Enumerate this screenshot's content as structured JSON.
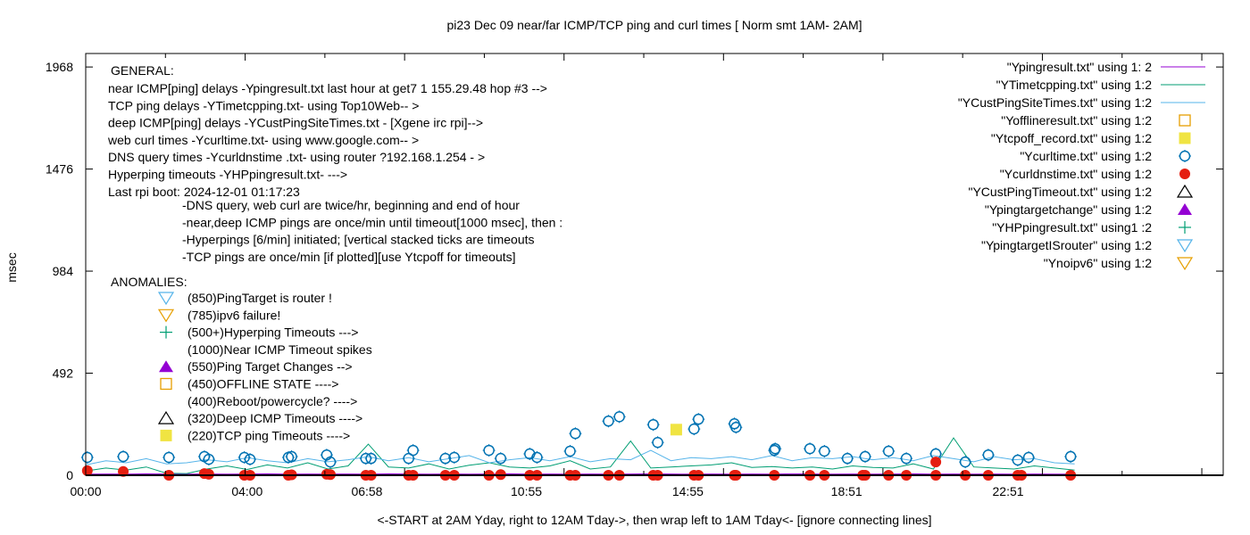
{
  "chart_data": {
    "type": "line",
    "title": "pi23 Dec 09  near/far ICMP/TCP ping and curl times [ Norm smt 1AM- 2AM]",
    "xlabel": "<-START at 2AM Yday, right to 12AM Tday->, then wrap left to 1AM Tday<- [ignore connecting lines]",
    "ylabel": "msec",
    "x_unit": "hours",
    "xlim": [
      0,
      28.18
    ],
    "ylim": [
      0,
      2033
    ],
    "yticks": [
      0,
      492,
      984,
      1476,
      1968
    ],
    "xticks": [
      {
        "value": 0,
        "label": "00:00"
      },
      {
        "value": 4.0,
        "label": "04:00"
      },
      {
        "value": 6.967,
        "label": "06:58"
      },
      {
        "value": 10.917,
        "label": "10:55"
      },
      {
        "value": 14.917,
        "label": "14:55"
      },
      {
        "value": 18.85,
        "label": "18:51"
      },
      {
        "value": 22.85,
        "label": "22:51"
      }
    ],
    "grid": false,
    "legend_placement": "top-right",
    "series": [
      {
        "name": "\"Ypingresult.txt\" using 1: 2",
        "style": "line",
        "color": "#9400d3",
        "x_step": 0.5,
        "values": [
          5,
          6,
          5,
          7,
          6,
          5,
          6,
          5,
          6,
          7,
          5,
          6,
          5,
          6,
          5,
          7,
          6,
          5,
          6,
          5,
          6,
          7,
          5,
          6,
          5,
          6,
          5,
          6,
          7,
          6,
          5,
          6,
          5,
          6,
          5,
          7,
          6,
          5,
          6,
          5,
          6,
          7,
          5,
          6,
          5,
          6,
          5,
          6,
          5,
          5
        ]
      },
      {
        "name": "\"YTimetcpping.txt\" using 1:2",
        "style": "line",
        "color": "#009e73",
        "x_step": 0.5,
        "values": [
          20,
          35,
          25,
          40,
          10,
          8,
          30,
          45,
          28,
          50,
          35,
          60,
          30,
          45,
          150,
          40,
          35,
          55,
          30,
          48,
          60,
          40,
          35,
          45,
          70,
          30,
          40,
          165,
          35,
          40,
          45,
          50,
          60,
          38,
          42,
          35,
          40,
          30,
          45,
          38,
          35,
          55,
          30,
          180,
          40,
          35,
          30,
          45,
          35,
          25
        ]
      },
      {
        "name": "\"YCustPingSiteTimes.txt\" using 1:2",
        "style": "line",
        "color": "#56b4e9",
        "x_step": 0.5,
        "values": [
          50,
          70,
          60,
          80,
          55,
          60,
          75,
          65,
          85,
          70,
          60,
          80,
          65,
          75,
          90,
          70,
          85,
          65,
          80,
          95,
          60,
          75,
          85,
          70,
          90,
          65,
          80,
          75,
          120,
          70,
          85,
          80,
          90,
          75,
          95,
          70,
          85,
          80,
          90,
          75,
          85,
          70,
          95,
          80,
          65,
          90,
          75,
          80,
          60,
          55
        ]
      },
      {
        "name": "\"Yofflineresult.txt\" using 1:2",
        "style": "points",
        "symbol": "open-square",
        "color": "#e69f00",
        "points": []
      },
      {
        "name": "\"Ytcpoff_record.txt\" using  1:2",
        "style": "points",
        "symbol": "filled-square",
        "color": "#f0e442",
        "points": [
          [
            14.63,
            220
          ]
        ]
      },
      {
        "name": "\"Ycurltime.txt\" using 1:2",
        "style": "points",
        "symbol": "open-circle",
        "color": "#0072b2",
        "points": [
          [
            0.04,
            86
          ],
          [
            0.93,
            90
          ],
          [
            2.06,
            86
          ],
          [
            2.94,
            90
          ],
          [
            3.05,
            77
          ],
          [
            3.93,
            86
          ],
          [
            4.07,
            77
          ],
          [
            5.02,
            86
          ],
          [
            5.1,
            90
          ],
          [
            5.97,
            98
          ],
          [
            6.06,
            64
          ],
          [
            6.94,
            81
          ],
          [
            7.07,
            81
          ],
          [
            8.0,
            81
          ],
          [
            8.11,
            120
          ],
          [
            8.91,
            81
          ],
          [
            9.13,
            86
          ],
          [
            9.99,
            120
          ],
          [
            10.28,
            81
          ],
          [
            11.0,
            103
          ],
          [
            11.18,
            86
          ],
          [
            12.0,
            116
          ],
          [
            12.13,
            201
          ],
          [
            12.95,
            261
          ],
          [
            13.22,
            282
          ],
          [
            14.06,
            244
          ],
          [
            14.17,
            158
          ],
          [
            15.07,
            223
          ],
          [
            15.18,
            270
          ],
          [
            16.07,
            248
          ],
          [
            16.11,
            231
          ],
          [
            17.06,
            120
          ],
          [
            17.08,
            128
          ],
          [
            17.94,
            128
          ],
          [
            18.3,
            116
          ],
          [
            18.87,
            81
          ],
          [
            19.31,
            90
          ],
          [
            19.89,
            116
          ],
          [
            20.33,
            81
          ],
          [
            21.06,
            103
          ],
          [
            21.79,
            64
          ],
          [
            22.36,
            98
          ],
          [
            23.09,
            73
          ],
          [
            23.36,
            86
          ],
          [
            24.4,
            90
          ]
        ]
      },
      {
        "name": "\"Ycurldnstime.txt\" using 1:2",
        "style": "points",
        "symbol": "filled-circle",
        "color": "#e51e10",
        "points": [
          [
            0.04,
            22
          ],
          [
            0.93,
            18
          ],
          [
            2.06,
            0
          ],
          [
            2.94,
            8
          ],
          [
            3.05,
            5
          ],
          [
            3.93,
            0
          ],
          [
            4.07,
            0
          ],
          [
            5.02,
            0
          ],
          [
            5.1,
            2
          ],
          [
            5.97,
            5
          ],
          [
            6.06,
            3
          ],
          [
            6.94,
            0
          ],
          [
            7.07,
            0
          ],
          [
            8.0,
            0
          ],
          [
            8.11,
            0
          ],
          [
            8.91,
            0
          ],
          [
            9.13,
            0
          ],
          [
            9.99,
            0
          ],
          [
            10.28,
            3
          ],
          [
            11.0,
            0
          ],
          [
            11.18,
            0
          ],
          [
            12.0,
            0
          ],
          [
            12.13,
            0
          ],
          [
            12.95,
            0
          ],
          [
            13.22,
            0
          ],
          [
            14.06,
            0
          ],
          [
            14.17,
            0
          ],
          [
            15.07,
            0
          ],
          [
            15.18,
            0
          ],
          [
            16.07,
            0
          ],
          [
            16.11,
            0
          ],
          [
            17.06,
            0
          ],
          [
            17.94,
            0
          ],
          [
            18.3,
            0
          ],
          [
            19.25,
            0
          ],
          [
            19.31,
            0
          ],
          [
            19.89,
            0
          ],
          [
            20.33,
            0
          ],
          [
            21.06,
            64
          ],
          [
            21.06,
            0
          ],
          [
            21.79,
            0
          ],
          [
            22.36,
            0
          ],
          [
            23.09,
            0
          ],
          [
            23.18,
            0
          ],
          [
            24.4,
            0
          ]
        ]
      },
      {
        "name": "\"YCustPingTimeout.txt\" using  1:2",
        "style": "points",
        "symbol": "open-triangle-up",
        "color": "#000000",
        "points": []
      },
      {
        "name": "\"Ypingtargetchange\" using 1:2",
        "style": "points",
        "symbol": "filled-triangle-up",
        "color": "#9400d3",
        "points": []
      },
      {
        "name": "\"YHPpingresult.txt\" using1 :2",
        "style": "points",
        "symbol": "plus",
        "color": "#009e73",
        "points": []
      },
      {
        "name": "\"YpingtargetISrouter\" using 1:2",
        "style": "points",
        "symbol": "open-triangle-down",
        "color": "#56b4e9",
        "points": []
      },
      {
        "name": "\"Ynoipv6\" using 1:2",
        "style": "points",
        "symbol": "open-triangle-down",
        "color": "#e69f00",
        "points": []
      }
    ],
    "annotations": {
      "general_header": "GENERAL:",
      "general": [
        "near ICMP[ping] delays -Ypingresult.txt last hour at get7 1 155.29.48 hop #3 -->",
        "TCP ping delays -YTimetcpping.txt- using Top10Web-- >",
        "deep ICMP[ping] delays -YCustPingSiteTimes.txt - [Xgene irc rpi]-->",
        "web curl times -Ycurltime.txt- using www.google.com-- >",
        "DNS query times -Ycurldnstime .txt- using router ?192.168.1.254 - >",
        "Hyperping timeouts -YHPpingresult.txt- --->",
        "Last rpi boot: 2024-12-01 01:17:23"
      ],
      "notes": [
        "-DNS query, web curl are twice/hr, beginning and end of hour",
        "-near,deep ICMP pings are once/min until timeout[1000 msec], then :",
        " -Hyperpings [6/min] initiated; [vertical stacked ticks are timeouts",
        "-TCP pings are once/min [if plotted][use Ytcpoff for timeouts]"
      ],
      "anomalies_header": "ANOMALIES:",
      "anomalies": [
        {
          "symbol": "open-triangle-down",
          "color": "#56b4e9",
          "text": "(850)PingTarget is router !"
        },
        {
          "symbol": "open-triangle-down",
          "color": "#e69f00",
          "text": "(785)ipv6 failure!"
        },
        {
          "symbol": "plus",
          "color": "#009e73",
          "text": "(500+)Hyperping Timeouts --->"
        },
        {
          "symbol": "none",
          "color": "#000000",
          "text": "(1000)Near ICMP Timeout spikes"
        },
        {
          "symbol": "filled-triangle-up",
          "color": "#9400d3",
          "text": "(550)Ping Target Changes -->"
        },
        {
          "symbol": "open-square",
          "color": "#e69f00",
          "text": "(450)OFFLINE STATE ---->"
        },
        {
          "symbol": "none",
          "color": "#000000",
          "text": "(400)Reboot/powercycle? ---->"
        },
        {
          "symbol": "open-triangle-up",
          "color": "#000000",
          "text": "(320)Deep ICMP Timeouts ---->"
        },
        {
          "symbol": "filled-square",
          "color": "#f0e442",
          "text": "(220)TCP ping Timeouts ---->"
        }
      ]
    }
  }
}
